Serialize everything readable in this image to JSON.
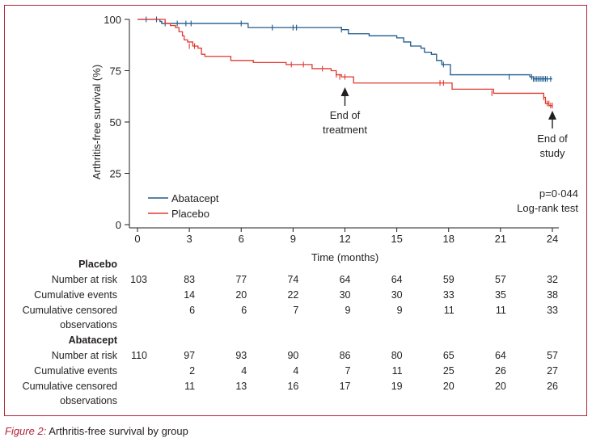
{
  "chart_data": {
    "type": "line",
    "title": "",
    "xlabel": "Time (months)",
    "ylabel": "Arthritis-free survival (%)",
    "xlim": [
      0,
      24
    ],
    "ylim": [
      0,
      100
    ],
    "xticks": [
      "0",
      "3",
      "6",
      "9",
      "12",
      "15",
      "18",
      "21",
      "24"
    ],
    "yticks": [
      "0",
      "25",
      "50",
      "75",
      "100"
    ],
    "legend_position": "bottom-left",
    "series": [
      {
        "name": "Abatacept",
        "color": "#1f5a8c",
        "x": [
          0,
          1.2,
          1.3,
          1.4,
          5.8,
          6.4,
          11.6,
          11.8,
          12.2,
          12.7,
          13.4,
          14.4,
          15.0,
          15.4,
          15.8,
          16.4,
          16.6,
          17.0,
          17.3,
          17.6,
          18.1,
          18.4,
          21.5,
          22.7,
          22.9,
          23.1,
          23.3,
          23.6,
          24.0
        ],
        "y": [
          100,
          100,
          99,
          98,
          98,
          96,
          96,
          95,
          93,
          93,
          92,
          92,
          91,
          89,
          87,
          86,
          84,
          83,
          80,
          78,
          73,
          73,
          73,
          72,
          71,
          71,
          71,
          71,
          71
        ],
        "censor_x": [
          0.5,
          1.1,
          1.6,
          2.3,
          2.8,
          3.1,
          6.0,
          7.8,
          9.0,
          9.2,
          11.8,
          17.7,
          21.5,
          22.8,
          22.9,
          23.0,
          23.1,
          23.2,
          23.3,
          23.4,
          23.5,
          23.6,
          23.7,
          23.9
        ],
        "censor_y": [
          100,
          100,
          98,
          98,
          98,
          98,
          98,
          96,
          96,
          96,
          95,
          78,
          72,
          72,
          71,
          71,
          71,
          71,
          71,
          71,
          71,
          71,
          71,
          71
        ]
      },
      {
        "name": "Placebo",
        "color": "#e03a30",
        "x": [
          0,
          1.2,
          1.6,
          1.9,
          2.2,
          2.4,
          2.6,
          2.7,
          2.9,
          3.2,
          3.5,
          3.7,
          3.9,
          5.4,
          6.7,
          8.6,
          9.3,
          10.1,
          11.2,
          11.5,
          11.8,
          12.5,
          17.4,
          18.2,
          20.6,
          23.5,
          23.6,
          23.7,
          23.8,
          24.0
        ],
        "y": [
          100,
          100,
          98,
          97,
          96,
          94,
          92,
          90,
          89,
          87,
          86,
          83,
          82,
          80,
          79,
          78,
          78,
          76,
          75,
          73,
          72,
          69,
          69,
          66,
          64,
          62,
          59,
          59,
          58,
          58
        ],
        "censor_x": [
          3.0,
          3.3,
          8.9,
          9.6,
          10.7,
          11.5,
          11.7,
          12.0,
          17.5,
          17.7,
          20.5,
          23.5,
          23.7,
          23.8,
          23.9,
          24.0
        ],
        "censor_y": [
          87,
          87,
          78,
          78,
          76,
          73,
          72,
          72,
          69,
          69,
          64,
          62,
          59,
          59,
          58,
          58
        ]
      }
    ],
    "annotations": {
      "end_treatment": [
        "End of",
        "treatment"
      ],
      "end_study": [
        "End of",
        "study"
      ],
      "pvalue": "p=0·044",
      "test": "Log-rank test"
    }
  },
  "table": {
    "groups": [
      {
        "title": "Placebo",
        "rows": [
          {
            "label": [
              "Number at risk"
            ],
            "values": [
              "103",
              "83",
              "77",
              "74",
              "64",
              "64",
              "59",
              "57",
              "32"
            ]
          },
          {
            "label": [
              "Cumulative events"
            ],
            "values": [
              "",
              "14",
              "20",
              "22",
              "30",
              "30",
              "33",
              "35",
              "38"
            ]
          },
          {
            "label": [
              "Cumulative censored",
              "observations"
            ],
            "values": [
              "",
              "6",
              "6",
              "7",
              "9",
              "9",
              "11",
              "11",
              "33"
            ]
          }
        ]
      },
      {
        "title": "Abatacept",
        "rows": [
          {
            "label": [
              "Number at risk"
            ],
            "values": [
              "110",
              "97",
              "93",
              "90",
              "86",
              "80",
              "65",
              "64",
              "57"
            ]
          },
          {
            "label": [
              "Cumulative events"
            ],
            "values": [
              "",
              "2",
              "4",
              "4",
              "7",
              "11",
              "25",
              "26",
              "27"
            ]
          },
          {
            "label": [
              "Cumulative censored",
              "observations"
            ],
            "values": [
              "",
              "11",
              "13",
              "16",
              "17",
              "19",
              "20",
              "20",
              "26"
            ]
          }
        ]
      }
    ]
  },
  "caption": {
    "label": "Figure 2:",
    "text": " Arthritis-free survival by group"
  }
}
